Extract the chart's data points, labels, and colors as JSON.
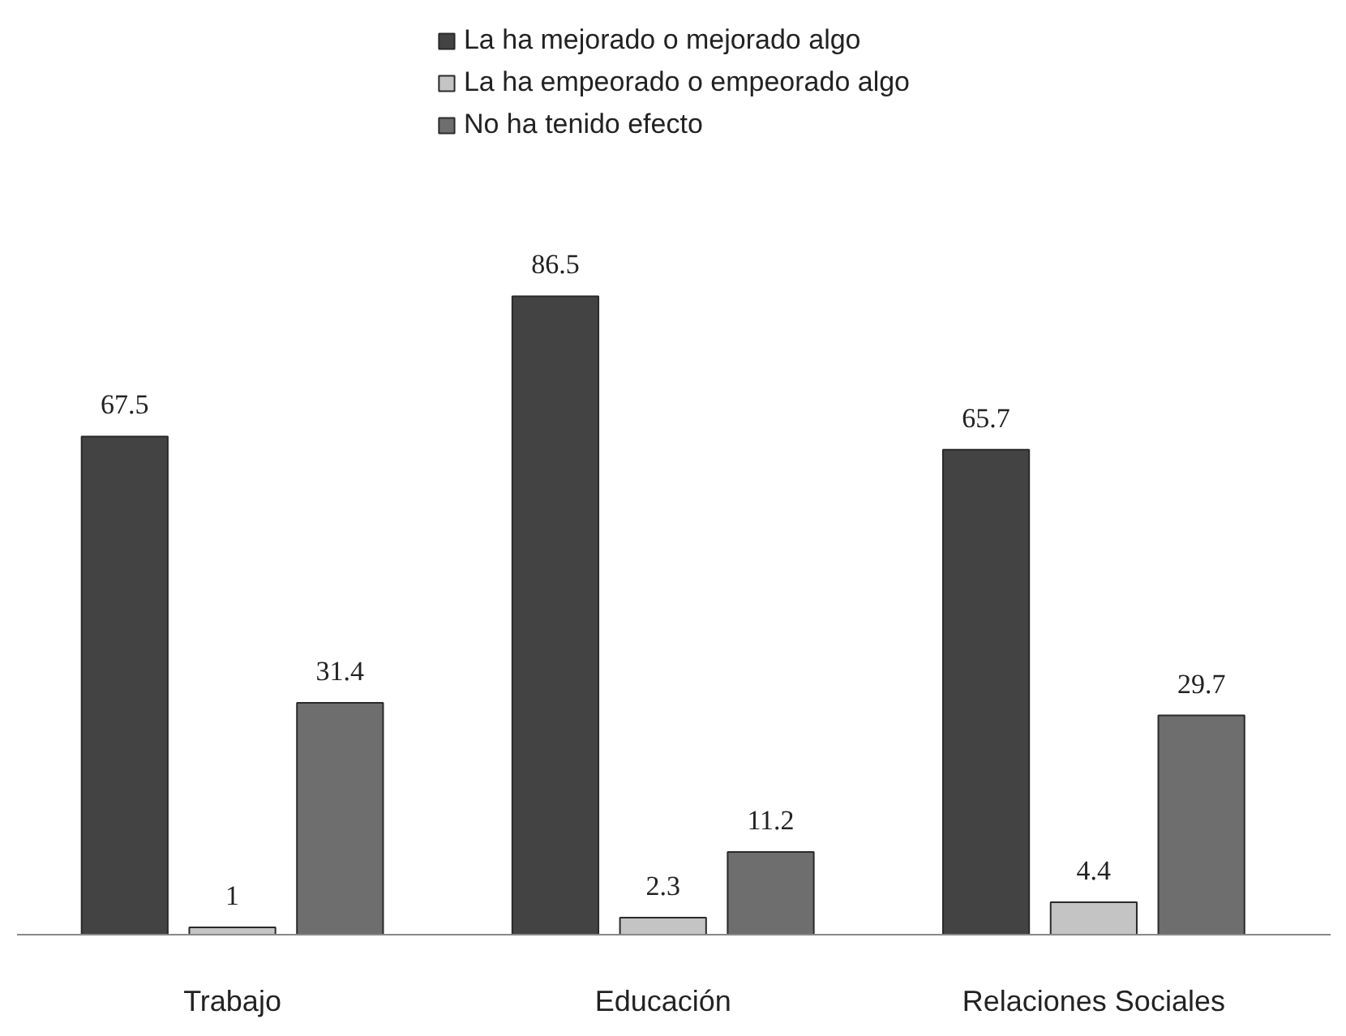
{
  "chart_data": {
    "type": "bar",
    "categories": [
      "Trabajo",
      "Educación",
      "Relaciones Sociales"
    ],
    "series": [
      {
        "name": "La ha mejorado o mejorado algo",
        "color": "#434343",
        "values": [
          67.5,
          86.5,
          65.7
        ]
      },
      {
        "name": "La ha empeorado o empeorado algo",
        "color": "#c4c4c4",
        "values": [
          1,
          2.3,
          4.4
        ]
      },
      {
        "name": "No ha tenido efecto",
        "color": "#6e6e6e",
        "values": [
          31.4,
          11.2,
          29.7
        ]
      }
    ],
    "data_labels": true,
    "legend": "top"
  }
}
